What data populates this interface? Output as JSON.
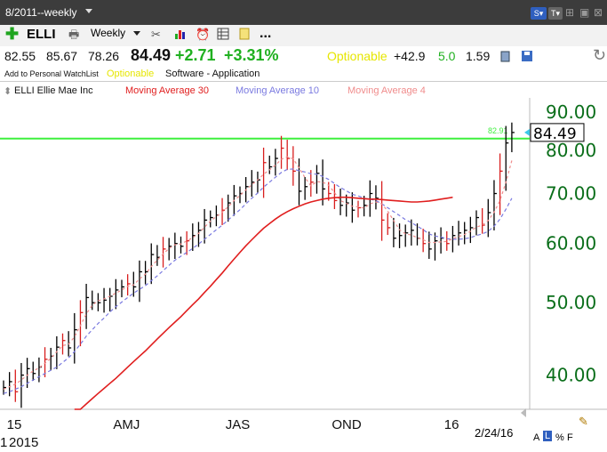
{
  "window": {
    "title": "8/2011--weekly"
  },
  "toolbar": {
    "symbol": "ELLI",
    "period_label": "Weekly",
    "more_label": "..."
  },
  "quote": {
    "open": "82.55",
    "high": "85.67",
    "low": "78.26",
    "last": "84.49",
    "change": "+2.71",
    "change_pct": "+3.31%",
    "optionable_label": "Optionable",
    "stat1": "+42.9",
    "stat2": "5.0",
    "stat3": "1.59"
  },
  "info": {
    "watchlist_label": "Add to Personal WatchList",
    "optionable": "Optionable",
    "industry": "Software - Application"
  },
  "legend": {
    "stock": "ELLI Ellie Mae Inc",
    "ma30": "Moving Average 30",
    "ma10": "Moving Average 10",
    "ma4": "Moving Average 4"
  },
  "colors": {
    "up": "#000000",
    "down": "#d81e1e",
    "ma30": "#e01e1e",
    "ma10": "#7a7ae0",
    "ma4": "#f08c8c",
    "line": "#3ef03e",
    "axis": "#0a6e1a"
  },
  "footer": {
    "date": "2/24/16",
    "scale_a": "A",
    "scale_l": "L",
    "scale_pct": "%",
    "scale_f": "F"
  },
  "chart_data": {
    "type": "line",
    "ylim": [
      36,
      94
    ],
    "y_scale": "log",
    "yticks": [
      90,
      80,
      70,
      60,
      50,
      40
    ],
    "ytick_labels": [
      "90.00",
      "80.00",
      "70.00",
      "60.00",
      "50.00",
      "40.00"
    ],
    "xtick_labels": [
      "15",
      "AMJ",
      "JAS",
      "OND",
      "16"
    ],
    "xtick_weeks": [
      1,
      19,
      38,
      56,
      75
    ],
    "year_label": "2015",
    "year_label_prefix": "1",
    "horizontal_line": {
      "value": 82.91,
      "label": "82.91"
    },
    "last_price": {
      "value": 84.49,
      "label": "84.49"
    },
    "weeks_count": 87,
    "closes": [
      38.5,
      39.2,
      38.0,
      40.0,
      40.8,
      40.2,
      41.0,
      42.0,
      42.4,
      43.6,
      44.5,
      43.5,
      46.0,
      48.5,
      50.8,
      50.0,
      50.0,
      50.4,
      51.0,
      52.0,
      52.5,
      53.0,
      52.5,
      55.0,
      55.0,
      58.0,
      57.5,
      59.0,
      59.5,
      60.0,
      59.5,
      60.5,
      61.5,
      62.5,
      64.5,
      65.0,
      65.5,
      66.5,
      68.0,
      69.5,
      70.0,
      71.5,
      72.5,
      73.0,
      77.0,
      76.0,
      78.0,
      80.5,
      78.0,
      75.0,
      70.5,
      71.5,
      72.5,
      74.5,
      71.0,
      70.0,
      68.5,
      67.5,
      68.0,
      66.5,
      67.0,
      67.5,
      70.0,
      69.0,
      64.5,
      63.0,
      61.0,
      61.5,
      62.0,
      62.5,
      61.0,
      60.0,
      59.0,
      60.5,
      61.0,
      60.0,
      61.5,
      62.0,
      62.5,
      63.0,
      65.0,
      63.5,
      66.0,
      70.0,
      75.0,
      81.8,
      84.49
    ],
    "down_weeks": [
      2,
      7,
      10,
      13,
      21,
      27,
      31,
      37,
      44,
      47,
      48,
      49,
      52,
      55,
      56,
      60,
      64,
      65,
      71,
      75,
      81,
      84
    ],
    "ma4": [
      38.3,
      38.6,
      38.9,
      39.4,
      40.0,
      40.5,
      40.9,
      41.5,
      42.1,
      43.0,
      43.8,
      44.0,
      45.0,
      46.6,
      48.3,
      49.6,
      50.3,
      50.6,
      51.0,
      51.5,
      52.0,
      52.6,
      52.8,
      53.8,
      54.6,
      55.9,
      57.0,
      58.1,
      59.1,
      59.8,
      59.9,
      60.5,
      61.1,
      61.9,
      63.1,
      64.3,
      65.2,
      66.1,
      67.2,
      68.5,
      69.6,
      70.8,
      71.9,
      73.0,
      74.3,
      75.3,
      76.4,
      77.8,
      78.4,
      77.9,
      75.8,
      73.5,
      71.7,
      72.6,
      72.5,
      71.8,
      70.2,
      68.5,
      67.9,
      67.3,
      67.2,
      66.9,
      67.8,
      68.2,
      67.8,
      66.3,
      64.4,
      62.6,
      61.8,
      61.6,
      61.1,
      60.7,
      60.2,
      60.2,
      60.3,
      60.4,
      60.9,
      61.3,
      61.7,
      62.3,
      63.1,
      63.5,
      64.4,
      66.1,
      68.5,
      72.5,
      77.5
    ],
    "ma10": [
      37.8,
      38.0,
      38.3,
      38.6,
      39.0,
      39.4,
      39.8,
      40.2,
      40.6,
      41.0,
      41.6,
      42.2,
      43.0,
      44.0,
      45.1,
      46.0,
      46.9,
      47.7,
      48.6,
      49.4,
      50.1,
      50.8,
      51.5,
      52.1,
      52.7,
      53.5,
      54.3,
      55.2,
      56.1,
      57.0,
      57.7,
      58.4,
      59.1,
      59.9,
      60.8,
      61.7,
      62.6,
      63.5,
      64.5,
      65.6,
      66.6,
      67.8,
      69.0,
      70.1,
      71.4,
      72.5,
      73.6,
      74.7,
      75.4,
      75.5,
      75.1,
      74.8,
      74.4,
      74.3,
      73.8,
      73.1,
      72.2,
      71.3,
      70.6,
      69.8,
      69.5,
      69.0,
      68.8,
      68.5,
      67.8,
      67.0,
      66.2,
      65.4,
      64.6,
      64.0,
      63.3,
      62.6,
      61.8,
      61.4,
      61.2,
      60.9,
      60.8,
      60.8,
      60.9,
      61.1,
      61.5,
      61.8,
      62.3,
      63.3,
      64.7,
      66.7,
      69.0
    ],
    "ma30_start_week": 12,
    "ma30": [
      35.6,
      36.0,
      36.6,
      37.2,
      37.8,
      38.4,
      39.0,
      39.6,
      40.3,
      41.0,
      41.7,
      42.4,
      43.1,
      43.9,
      44.7,
      45.5,
      46.3,
      47.1,
      47.9,
      48.8,
      49.7,
      50.6,
      51.6,
      52.6,
      53.7,
      54.8,
      56.0,
      57.2,
      58.4,
      59.6,
      60.7,
      61.8,
      62.9,
      63.8,
      64.7,
      65.5,
      66.2,
      66.8,
      67.3,
      67.8,
      68.2,
      68.5,
      68.8,
      69.0,
      69.1,
      69.2,
      69.2,
      69.1,
      69.0,
      68.9,
      68.8,
      68.8,
      68.7,
      68.6,
      68.5,
      68.4,
      68.3,
      68.2,
      68.2,
      68.3,
      68.4,
      68.6,
      68.8,
      69.0,
      69.2
    ]
  }
}
